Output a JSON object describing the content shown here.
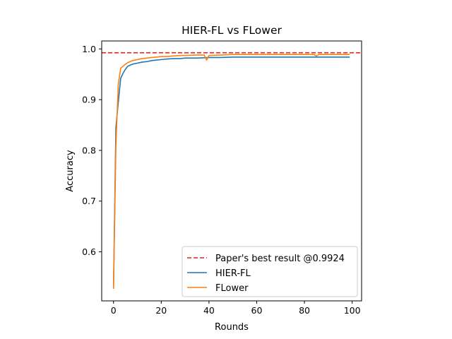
{
  "chart_data": {
    "type": "line",
    "title": "HIER-FL vs FLower",
    "xlabel": "Rounds",
    "ylabel": "Accuracy",
    "xlim": [
      -4.95,
      103.95
    ],
    "ylim": [
      0.5033,
      1.0157
    ],
    "xticks": [
      0,
      20,
      40,
      60,
      80,
      100
    ],
    "yticks": [
      0.6,
      0.7,
      0.8,
      0.9,
      1.0
    ],
    "xtick_labels": [
      "0",
      "20",
      "40",
      "60",
      "80",
      "100"
    ],
    "ytick_labels": [
      "0.6",
      "0.7",
      "0.8",
      "0.9",
      "1.0"
    ],
    "grid": false,
    "legend_position": "lower-right",
    "reference_line": {
      "name": "Paper's best result @0.9924",
      "y": 0.9924,
      "color": "#d62728",
      "style": "dashed"
    },
    "series": [
      {
        "name": "HIER-FL",
        "color": "#1f77b4",
        "x": [
          0,
          1,
          2,
          3,
          4,
          5,
          6,
          7,
          8,
          10,
          12,
          14,
          16,
          18,
          20,
          22,
          25,
          28,
          30,
          35,
          40,
          45,
          50,
          55,
          60,
          65,
          70,
          75,
          80,
          85,
          90,
          95,
          99
        ],
        "y": [
          0.53,
          0.845,
          0.895,
          0.942,
          0.952,
          0.96,
          0.966,
          0.968,
          0.97,
          0.972,
          0.974,
          0.975,
          0.977,
          0.978,
          0.979,
          0.98,
          0.981,
          0.981,
          0.982,
          0.982,
          0.983,
          0.983,
          0.984,
          0.984,
          0.984,
          0.984,
          0.984,
          0.984,
          0.984,
          0.984,
          0.984,
          0.984,
          0.984
        ]
      },
      {
        "name": "FLower",
        "color": "#ff7f0e",
        "x": [
          0,
          1,
          2,
          3,
          4,
          5,
          6,
          7,
          8,
          10,
          12,
          14,
          16,
          18,
          20,
          22,
          25,
          28,
          30,
          35,
          38,
          39,
          40,
          45,
          50,
          55,
          60,
          65,
          70,
          75,
          80,
          84,
          85,
          86,
          90,
          95,
          99
        ],
        "y": [
          0.527,
          0.81,
          0.93,
          0.962,
          0.966,
          0.97,
          0.973,
          0.975,
          0.977,
          0.979,
          0.981,
          0.982,
          0.983,
          0.984,
          0.985,
          0.985,
          0.986,
          0.987,
          0.987,
          0.988,
          0.988,
          0.978,
          0.987,
          0.988,
          0.989,
          0.989,
          0.989,
          0.989,
          0.989,
          0.989,
          0.989,
          0.989,
          0.986,
          0.989,
          0.989,
          0.989,
          0.989
        ]
      }
    ]
  }
}
